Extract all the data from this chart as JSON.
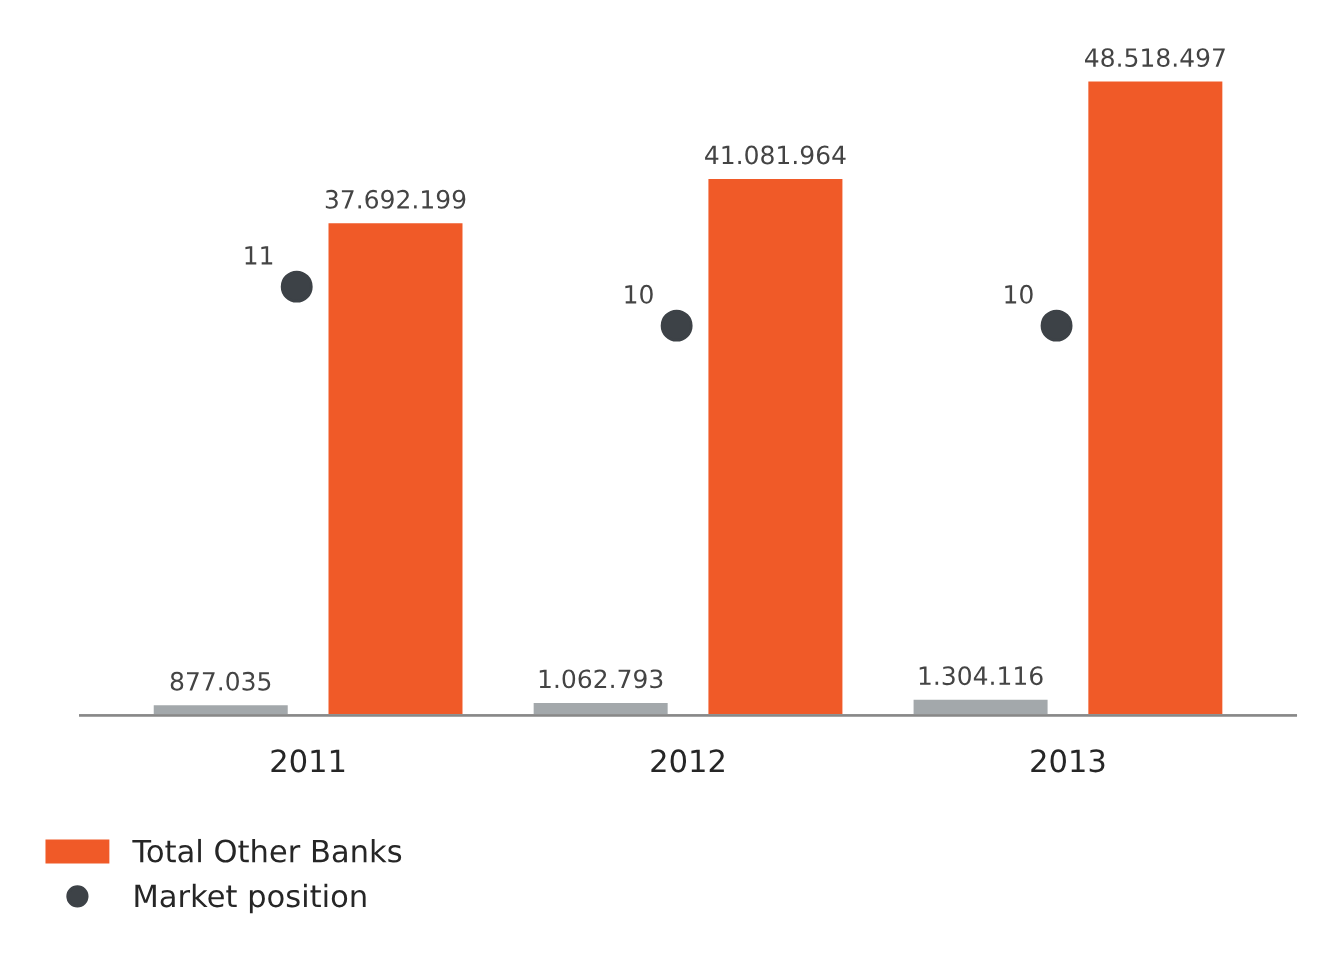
{
  "chart_data": {
    "type": "bar",
    "categories": [
      "2011",
      "2012",
      "2013"
    ],
    "series": [
      {
        "color": "#a3a8ab",
        "values": [
          877035,
          1062793,
          1304116
        ],
        "value_labels": [
          "877.035",
          "1.062.793",
          "1.304.116"
        ]
      },
      {
        "name": "Total Other Banks",
        "color": "#f05a28",
        "values": [
          37692199,
          41081964,
          48518497
        ],
        "value_labels": [
          "37.692.199",
          "41.081.964",
          "48.518.497"
        ]
      },
      {
        "name": "Market position",
        "type": "scatter",
        "axis": "y2",
        "color": "#3d4247",
        "values": [
          11,
          10,
          10
        ],
        "value_labels": [
          "11",
          "10",
          "10"
        ]
      }
    ],
    "legend": "bottom left",
    "tick_labels": "x",
    "grid": false,
    "marker": "circle"
  }
}
